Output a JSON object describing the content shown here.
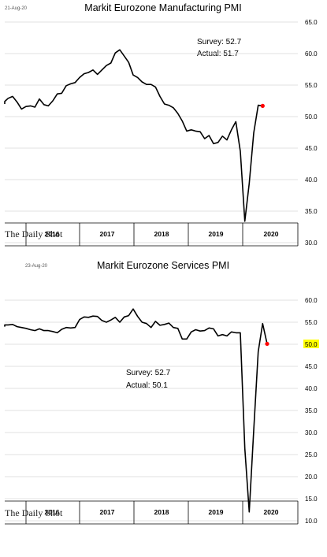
{
  "charts": [
    {
      "date": "21-Aug-20",
      "title": "Markit Eurozone Manufacturing PMI",
      "survey": "Survey: 52.7",
      "actual": "Actual:  51.7",
      "brand": "The Daily Shot",
      "ticks": [
        "65.0",
        "60.0",
        "55.0",
        "50.0",
        "45.0",
        "40.0",
        "35.0",
        "30.0"
      ],
      "years": [
        "2016",
        "2017",
        "2018",
        "2019",
        "2020"
      ]
    },
    {
      "date": "23-Aug-20",
      "title": "Markit Eurozone Services PMI",
      "survey": "Survey: 52.7",
      "actual": "Actual:  50.1",
      "brand": "The Daily Shot",
      "ticks": [
        "60.0",
        "55.0",
        "50.0",
        "45.0",
        "40.0",
        "35.0",
        "30.0",
        "25.0",
        "20.0",
        "15.0",
        "10.0"
      ],
      "years": [
        "2016",
        "2017",
        "2018",
        "2019",
        "2020"
      ]
    }
  ],
  "chart_data": [
    {
      "type": "line",
      "title": "Markit Eurozone Manufacturing PMI",
      "ylim": [
        30,
        65
      ],
      "x_start": "2015-07",
      "values": [
        52.0,
        52.4,
        52.9,
        53.2,
        52.3,
        51.2,
        51.6,
        51.7,
        51.5,
        52.8,
        51.9,
        51.7,
        52.5,
        53.6,
        53.7,
        54.9,
        55.2,
        55.4,
        56.2,
        56.8,
        57.0,
        57.4,
        56.7,
        57.4,
        58.1,
        58.5,
        60.1,
        60.6,
        59.6,
        58.6,
        56.6,
        56.2,
        55.5,
        55.1,
        55.1,
        54.7,
        53.2,
        52.0,
        51.8,
        51.4,
        50.5,
        49.3,
        47.7,
        47.9,
        47.7,
        47.6,
        46.5,
        47.0,
        45.7,
        45.9,
        46.9,
        46.3,
        47.9,
        49.2,
        44.5,
        33.4,
        39.4,
        47.4,
        51.8,
        51.7
      ],
      "latest_marker": {
        "value": 51.7,
        "color": "#ff0000"
      },
      "line_color": "#000000",
      "grid": "horizontal"
    },
    {
      "type": "line",
      "title": "Markit Eurozone Services PMI",
      "ylim": [
        10,
        60
      ],
      "x_start": "2015-07",
      "values": [
        54.0,
        54.4,
        54.4,
        54.5,
        54.0,
        53.8,
        53.6,
        53.3,
        53.1,
        53.5,
        53.1,
        53.1,
        52.9,
        52.6,
        53.4,
        53.8,
        53.7,
        53.8,
        55.6,
        56.2,
        56.1,
        56.4,
        56.3,
        55.4,
        55.0,
        55.5,
        56.1,
        55.0,
        56.2,
        56.5,
        58.0,
        56.3,
        55.0,
        54.7,
        53.8,
        55.2,
        54.3,
        54.5,
        54.8,
        53.8,
        53.6,
        51.2,
        51.2,
        52.8,
        53.3,
        53.0,
        53.1,
        53.7,
        53.5,
        51.9,
        52.2,
        51.9,
        52.8,
        52.6,
        52.6,
        26.4,
        12.0,
        30.5,
        48.3,
        54.7,
        50.1
      ],
      "latest_marker": {
        "value": 50.1,
        "color": "#ff0000"
      },
      "highlight_tick": {
        "value": "50.0",
        "color": "#ffff00"
      },
      "line_color": "#000000",
      "grid": "horizontal"
    }
  ]
}
